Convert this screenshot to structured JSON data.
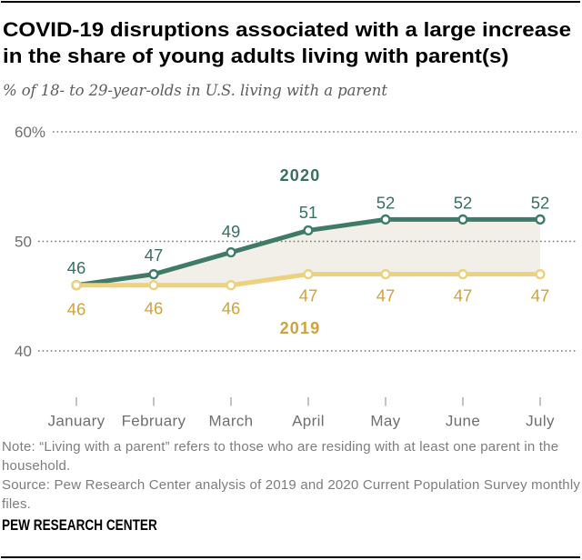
{
  "header": {
    "title": "COVID-19 disruptions associated with a large increase in the share of young adults living with parent(s)",
    "subtitle": "% of 18- to 29-year-olds in U.S. living with a parent"
  },
  "chart_data": {
    "type": "line",
    "x_categories": [
      "January",
      "February",
      "March",
      "April",
      "May",
      "June",
      "July"
    ],
    "series": [
      {
        "name": "2020",
        "values": [
          46,
          47,
          49,
          51,
          52,
          52,
          52
        ],
        "line_color": "#407a69",
        "label_color": "#37705f"
      },
      {
        "name": "2019",
        "values": [
          46,
          46,
          46,
          47,
          47,
          47,
          47
        ],
        "line_color": "#ecd17f",
        "label_color": "#cfa33c"
      }
    ],
    "area_between_series_color": "#f1efe7",
    "ylim": [
      40,
      60
    ],
    "yticks": [
      {
        "label": "60%",
        "value": 60
      },
      {
        "label": "50",
        "value": 50
      },
      {
        "label": "40",
        "value": 40
      }
    ],
    "grid": "dotted-horizontal",
    "grid_color": "#757575",
    "axis_text_color": "#6f6f6f",
    "tick_color": "#9b9b9b",
    "legend_position": "inline-series-labels"
  },
  "notes": {
    "note": "Note: “Living with a parent” refers to those who are residing with at least one parent in the household.",
    "source": "Source: Pew Research Center analysis of 2019 and 2020 Current Population Survey monthly files."
  },
  "footer": {
    "brand": "PEW RESEARCH CENTER"
  }
}
